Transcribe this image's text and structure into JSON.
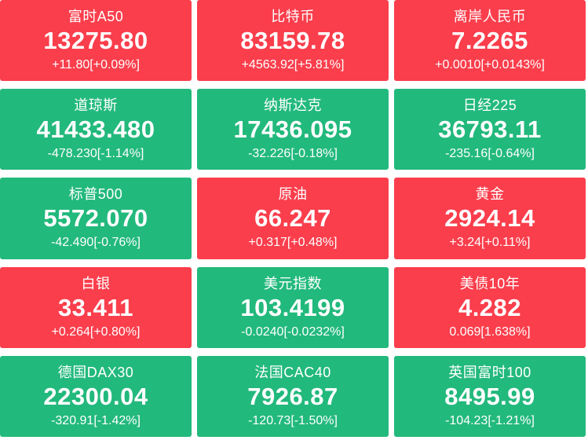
{
  "colors": {
    "up_bg": "#fa3e4c",
    "down_bg": "#22b97c",
    "text": "#ffffff",
    "page_bg": "#ffffff"
  },
  "board": {
    "columns": 3,
    "rows": 5
  },
  "tiles": [
    {
      "name": "富时A50",
      "price": "13275.80",
      "change": "+11.80[+0.09%]",
      "direction": "up"
    },
    {
      "name": "比特币",
      "price": "83159.78",
      "change": "+4563.92[+5.81%]",
      "direction": "up"
    },
    {
      "name": "离岸人民币",
      "price": "7.2265",
      "change": "+0.0010[+0.0143%]",
      "direction": "up"
    },
    {
      "name": "道琼斯",
      "price": "41433.480",
      "change": "-478.230[-1.14%]",
      "direction": "down"
    },
    {
      "name": "纳斯达克",
      "price": "17436.095",
      "change": "-32.226[-0.18%]",
      "direction": "down"
    },
    {
      "name": "日经225",
      "price": "36793.11",
      "change": "-235.16[-0.64%]",
      "direction": "down"
    },
    {
      "name": "标普500",
      "price": "5572.070",
      "change": "-42.490[-0.76%]",
      "direction": "down"
    },
    {
      "name": "原油",
      "price": "66.247",
      "change": "+0.317[+0.48%]",
      "direction": "up"
    },
    {
      "name": "黄金",
      "price": "2924.14",
      "change": "+3.24[+0.11%]",
      "direction": "up"
    },
    {
      "name": "白银",
      "price": "33.411",
      "change": "+0.264[+0.80%]",
      "direction": "up"
    },
    {
      "name": "美元指数",
      "price": "103.4199",
      "change": "-0.0240[-0.0232%]",
      "direction": "down"
    },
    {
      "name": "美债10年",
      "price": "4.282",
      "change": "0.069[1.638%]",
      "direction": "up"
    },
    {
      "name": "德国DAX30",
      "price": "22300.04",
      "change": "-320.91[-1.42%]",
      "direction": "down"
    },
    {
      "name": "法国CAC40",
      "price": "7926.87",
      "change": "-120.73[-1.50%]",
      "direction": "down"
    },
    {
      "name": "英国富时100",
      "price": "8495.99",
      "change": "-104.23[-1.21%]",
      "direction": "down"
    }
  ]
}
